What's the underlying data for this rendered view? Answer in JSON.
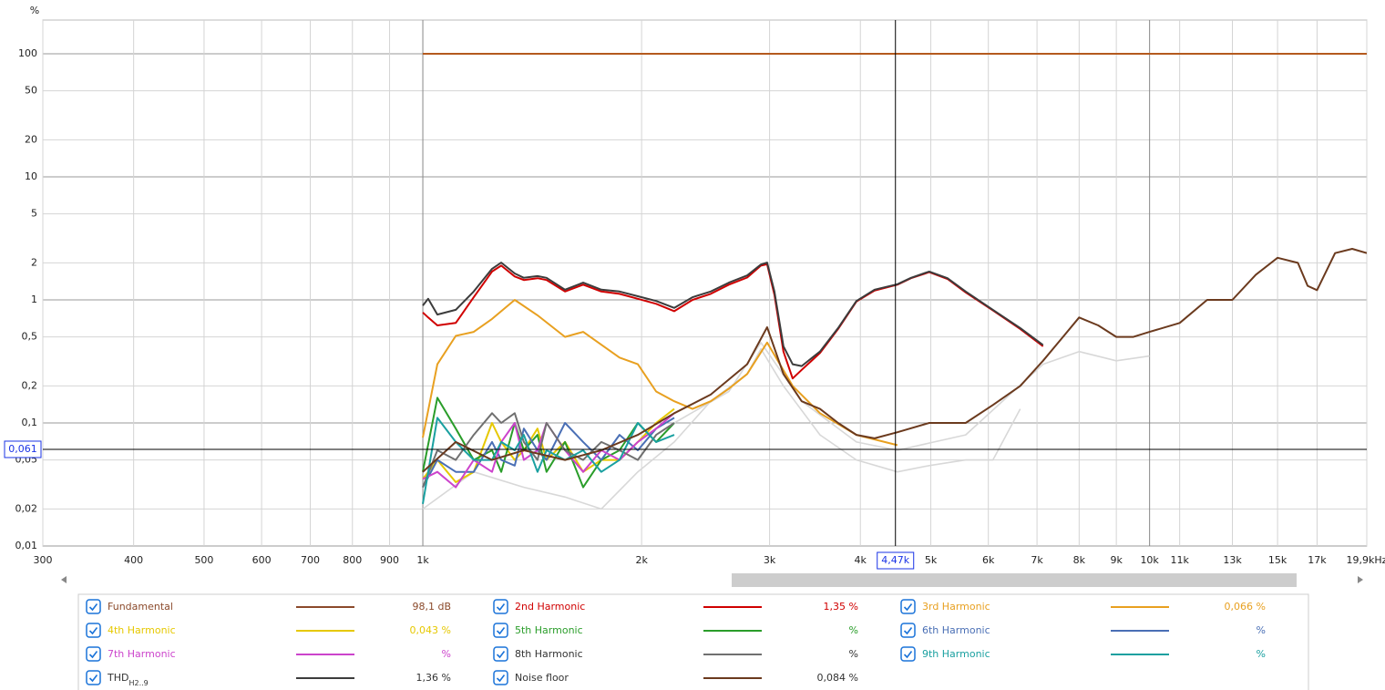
{
  "chart_data": {
    "type": "line",
    "y_axis_label": "%",
    "log_x": true,
    "log_y": true,
    "grid": true,
    "xlim": [
      300,
      19900
    ],
    "ylim": [
      0.01,
      188
    ],
    "xticks": [
      300,
      400,
      500,
      600,
      700,
      800,
      900,
      {
        "value": 1000,
        "label": "1k"
      },
      {
        "value": 2000,
        "label": "2k"
      },
      {
        "value": 3000,
        "label": "3k"
      },
      {
        "value": 4000,
        "label": "4k"
      },
      {
        "value": 5000,
        "label": "5k"
      },
      {
        "value": 6000,
        "label": "6k"
      },
      {
        "value": 7000,
        "label": "7k"
      },
      {
        "value": 8000,
        "label": "8k"
      },
      {
        "value": 9000,
        "label": "9k"
      },
      {
        "value": 10000,
        "label": "10k"
      },
      {
        "value": 11000,
        "label": "11k"
      },
      {
        "value": 13000,
        "label": "13k"
      },
      {
        "value": 15000,
        "label": "15k"
      },
      {
        "value": 17000,
        "label": "17k"
      },
      {
        "value": 19900,
        "label": "19,9kHz"
      }
    ],
    "yticks": [
      100,
      50,
      20,
      10,
      5,
      2,
      1,
      {
        "value": 0.5,
        "label": "0,5"
      },
      {
        "value": 0.2,
        "label": "0,2"
      },
      {
        "value": 0.1,
        "label": "0,1"
      },
      {
        "value": 0.05,
        "label": "0,05"
      },
      {
        "value": 0.02,
        "label": "0,02"
      },
      {
        "value": 0.01,
        "label": "0,01"
      }
    ],
    "cursor": {
      "x": {
        "value": 4470,
        "label": "4,47k"
      },
      "y": {
        "value": 0.061,
        "label": "0,061"
      }
    },
    "series": [
      {
        "name": "Fundamental",
        "color": "#b45a1e",
        "legend_color": "#8b4a2b",
        "readout": "98,1 dB",
        "x": [
          1000,
          19900
        ],
        "values": [
          100,
          100
        ]
      },
      {
        "name": "2nd Harmonic",
        "color": "#d00000",
        "readout": "1,35 %",
        "x": [
          1000,
          1017,
          1047,
          1110,
          1175,
          1245,
          1282,
          1338,
          1377,
          1438,
          1480,
          1569,
          1662,
          1760,
          1865,
          1976,
          2094,
          2218,
          2350,
          2490,
          2637,
          2794,
          2919,
          2977,
          3046,
          3135,
          3227,
          3321,
          3519,
          3728,
          3950,
          4184,
          4498,
          4696,
          4975,
          5271,
          5584,
          6088,
          6638,
          7134
        ],
        "values": [
          0.79,
          0.72,
          0.62,
          0.65,
          1.05,
          1.7,
          1.9,
          1.55,
          1.45,
          1.5,
          1.45,
          1.17,
          1.33,
          1.17,
          1.12,
          1.02,
          0.93,
          0.81,
          1.0,
          1.12,
          1.33,
          1.52,
          1.9,
          1.95,
          1.1,
          0.38,
          0.23,
          0.27,
          0.37,
          0.58,
          0.97,
          1.19,
          1.33,
          1.5,
          1.68,
          1.48,
          1.15,
          0.82,
          0.58,
          0.42
        ]
      },
      {
        "name": "3rd Harmonic",
        "color": "#e8a020",
        "readout": "0,066 %",
        "x": [
          1000,
          1047,
          1110,
          1175,
          1245,
          1338,
          1438,
          1569,
          1662,
          1865,
          1976,
          2094,
          2218,
          2350,
          2490,
          2637,
          2794,
          2977,
          3227,
          3519,
          3950,
          4498
        ],
        "values": [
          0.076,
          0.3,
          0.51,
          0.55,
          0.7,
          1.0,
          0.75,
          0.5,
          0.55,
          0.34,
          0.3,
          0.18,
          0.15,
          0.13,
          0.15,
          0.19,
          0.25,
          0.45,
          0.2,
          0.12,
          0.08,
          0.066
        ]
      },
      {
        "name": "4th Harmonic",
        "color": "#e6c800",
        "readout": "0,043 %",
        "x": [
          1000,
          1047,
          1110,
          1175,
          1245,
          1282,
          1338,
          1377,
          1438,
          1480,
          1569,
          1662,
          1760,
          1865,
          1976,
          2094,
          2218
        ],
        "values": [
          0.035,
          0.05,
          0.033,
          0.04,
          0.1,
          0.07,
          0.05,
          0.06,
          0.09,
          0.05,
          0.07,
          0.04,
          0.05,
          0.05,
          0.07,
          0.1,
          0.13
        ]
      },
      {
        "name": "5th Harmonic",
        "color": "#2a9d2a",
        "readout": "%",
        "x": [
          1000,
          1047,
          1110,
          1175,
          1245,
          1282,
          1338,
          1377,
          1438,
          1480,
          1569,
          1662,
          1760,
          1865,
          1976,
          2094,
          2218
        ],
        "values": [
          0.04,
          0.16,
          0.09,
          0.05,
          0.06,
          0.04,
          0.1,
          0.06,
          0.08,
          0.04,
          0.07,
          0.03,
          0.05,
          0.06,
          0.1,
          0.07,
          0.1
        ]
      },
      {
        "name": "6th Harmonic",
        "color": "#4a6fb5",
        "readout": "%",
        "x": [
          1000,
          1047,
          1110,
          1175,
          1245,
          1282,
          1338,
          1377,
          1438,
          1480,
          1569,
          1662,
          1760,
          1865,
          1976,
          2094,
          2218
        ],
        "values": [
          0.03,
          0.05,
          0.04,
          0.04,
          0.07,
          0.05,
          0.045,
          0.09,
          0.06,
          0.05,
          0.1,
          0.07,
          0.05,
          0.08,
          0.06,
          0.09,
          0.11
        ]
      },
      {
        "name": "7th Harmonic",
        "color": "#cc44cc",
        "readout": "%",
        "x": [
          1000,
          1047,
          1110,
          1175,
          1245,
          1282,
          1338,
          1377,
          1438,
          1480,
          1569,
          1662,
          1760,
          1865,
          1976,
          2094,
          2218
        ],
        "values": [
          0.035,
          0.04,
          0.03,
          0.05,
          0.04,
          0.07,
          0.1,
          0.05,
          0.06,
          0.1,
          0.06,
          0.04,
          0.06,
          0.05,
          0.07,
          0.09,
          0.12
        ]
      },
      {
        "name": "8th Harmonic",
        "color": "#707070",
        "readout": "%",
        "x": [
          1000,
          1047,
          1110,
          1175,
          1245,
          1282,
          1338,
          1377,
          1438,
          1480,
          1569,
          1662,
          1760,
          1865,
          1976,
          2094,
          2218
        ],
        "values": [
          0.03,
          0.06,
          0.05,
          0.08,
          0.12,
          0.1,
          0.12,
          0.07,
          0.05,
          0.1,
          0.06,
          0.05,
          0.07,
          0.06,
          0.05,
          0.08,
          0.1
        ]
      },
      {
        "name": "9th Harmonic",
        "color": "#1aa0a0",
        "readout": "%",
        "x": [
          1000,
          1047,
          1110,
          1175,
          1245,
          1282,
          1338,
          1377,
          1438,
          1480,
          1569,
          1662,
          1760,
          1865,
          1976,
          2094,
          2218
        ],
        "values": [
          0.022,
          0.11,
          0.07,
          0.05,
          0.05,
          0.07,
          0.06,
          0.08,
          0.04,
          0.06,
          0.05,
          0.06,
          0.04,
          0.05,
          0.1,
          0.07,
          0.08
        ]
      },
      {
        "name": "THD",
        "name_subscript": "H2..9",
        "color": "#3c3c3c",
        "readout": "1,36 %",
        "x": [
          1000,
          1017,
          1047,
          1110,
          1175,
          1245,
          1282,
          1338,
          1377,
          1438,
          1480,
          1569,
          1662,
          1760,
          1865,
          1976,
          2094,
          2218,
          2350,
          2490,
          2637,
          2794,
          2919,
          2977,
          3046,
          3135,
          3227,
          3321,
          3519,
          3728,
          3950,
          4184,
          4498,
          4696,
          4975,
          5271,
          5584,
          6088,
          6638,
          7134
        ],
        "values": [
          0.9,
          1.02,
          0.76,
          0.83,
          1.17,
          1.79,
          2.01,
          1.64,
          1.51,
          1.56,
          1.51,
          1.21,
          1.38,
          1.21,
          1.17,
          1.07,
          0.98,
          0.86,
          1.05,
          1.17,
          1.38,
          1.58,
          1.94,
          2.01,
          1.17,
          0.42,
          0.3,
          0.29,
          0.38,
          0.59,
          0.98,
          1.21,
          1.34,
          1.51,
          1.7,
          1.5,
          1.17,
          0.83,
          0.59,
          0.43
        ]
      },
      {
        "name": "Noise floor",
        "color": "#6b3a1e",
        "readout": "0,084 %",
        "x": [
          1000,
          1110,
          1245,
          1377,
          1569,
          1760,
          1976,
          2218,
          2490,
          2794,
          2977,
          3135,
          3321,
          3519,
          3728,
          3950,
          4184,
          4498,
          4975,
          5584,
          6088,
          6638,
          7134,
          7600,
          8000,
          8500,
          9000,
          9500,
          10000,
          11000,
          12000,
          13000,
          14000,
          15000,
          16000,
          16500,
          17000,
          18000,
          19000,
          19900
        ],
        "values": [
          0.04,
          0.07,
          0.05,
          0.06,
          0.05,
          0.06,
          0.08,
          0.12,
          0.17,
          0.3,
          0.6,
          0.25,
          0.15,
          0.13,
          0.1,
          0.08,
          0.075,
          0.084,
          0.1,
          0.1,
          0.14,
          0.2,
          0.32,
          0.5,
          0.72,
          0.62,
          0.5,
          0.5,
          0.55,
          0.65,
          1.0,
          1.0,
          1.6,
          2.2,
          2.0,
          1.3,
          1.2,
          2.4,
          2.6,
          2.4
        ]
      },
      {
        "color": "#d8d8d8",
        "x": [
          1000,
          1175,
          1377,
          1569,
          1760,
          1976,
          2218,
          2490,
          2794,
          2919,
          3135,
          3519,
          3950,
          4498,
          4975,
          5584,
          6088,
          6638
        ],
        "values": [
          0.02,
          0.04,
          0.03,
          0.025,
          0.02,
          0.04,
          0.07,
          0.15,
          0.25,
          0.4,
          0.2,
          0.08,
          0.05,
          0.04,
          0.045,
          0.05,
          0.05,
          0.13
        ]
      },
      {
        "color": "#d8d8d8",
        "x": [
          2218,
          2637,
          2919,
          3321,
          3950,
          4498,
          5584,
          7134,
          8000,
          9000,
          10000
        ],
        "values": [
          0.1,
          0.18,
          0.45,
          0.15,
          0.07,
          0.06,
          0.08,
          0.3,
          0.38,
          0.32,
          0.35
        ]
      }
    ]
  }
}
